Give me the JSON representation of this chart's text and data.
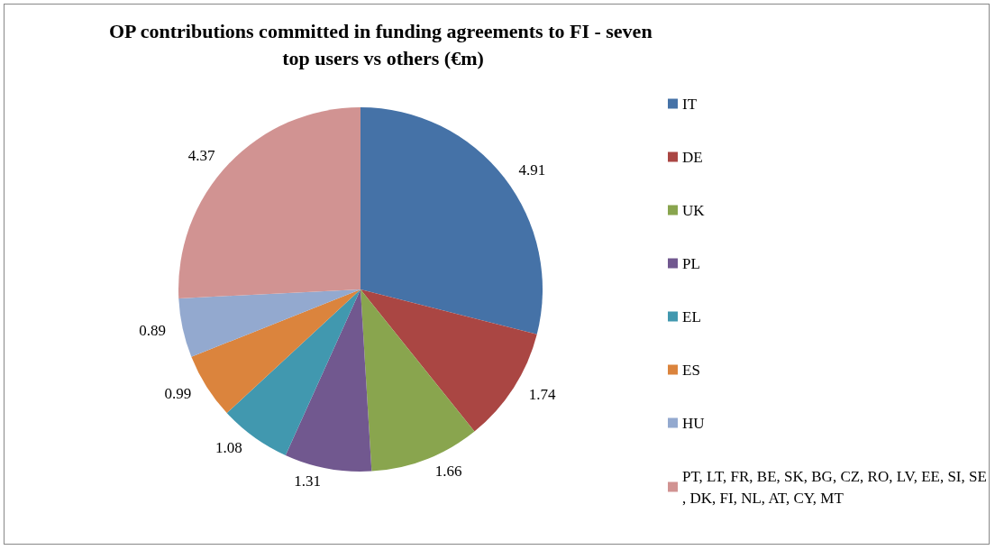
{
  "chart_data": {
    "type": "pie",
    "title": "OP contributions committed in funding agreements to FI - seven top users vs others (€m)",
    "categories": [
      "IT",
      "DE",
      "UK",
      "PL",
      "EL",
      "ES",
      "HU",
      "PT, LT, FR, BE, SK, BG, CZ, RO, LV, EE, SI, SE, DK, FI, NL, AT, CY, MT"
    ],
    "values": [
      4.91,
      1.74,
      1.66,
      1.31,
      1.08,
      0.99,
      0.89,
      4.37
    ],
    "colors": [
      "#4572a7",
      "#aa4643",
      "#89a54e",
      "#71588f",
      "#4198af",
      "#db843d",
      "#93a9cf",
      "#d19392"
    ],
    "data_labels": true,
    "legend": "right"
  }
}
